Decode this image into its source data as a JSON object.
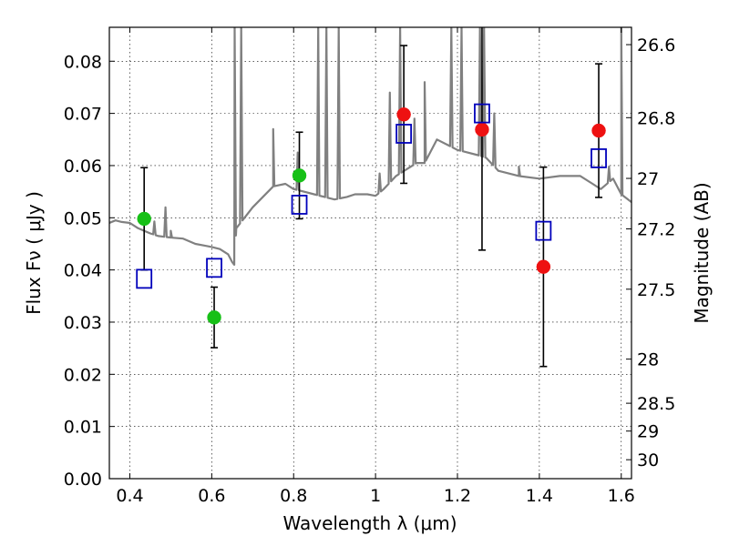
{
  "chart_data": {
    "type": "scatter",
    "xlabel": "Wavelength  λ (μm)",
    "ylabel": "Flux  Fν  ( μJy )",
    "y2label": "Magnitude (AB)",
    "xlim": [
      0.35,
      1.625
    ],
    "ylim": [
      0.0,
      0.0865
    ],
    "grid": true,
    "x_ticks": [
      0.4,
      0.6,
      0.8,
      1.0,
      1.2,
      1.4,
      1.6
    ],
    "x_tick_labels": [
      "0.4",
      "0.6",
      "0.8",
      "1",
      "1.2",
      "1.4",
      "1.6"
    ],
    "y_ticks": [
      0.0,
      0.01,
      0.02,
      0.03,
      0.04,
      0.05,
      0.06,
      0.07,
      0.08
    ],
    "y_tick_labels": [
      "0.00",
      "0.01",
      "0.02",
      "0.03",
      "0.04",
      "0.05",
      "0.06",
      "0.07",
      "0.08"
    ],
    "mag_ticks": [
      26.6,
      26.8,
      27,
      27.2,
      27.5,
      28,
      28.5,
      29,
      30
    ],
    "mag_tick_labels": [
      "26.6",
      "26.8",
      "27",
      "27.2",
      "27.5",
      "28",
      "28.5",
      "29",
      "30"
    ],
    "observed_optical": {
      "color": "#17c017",
      "points": [
        {
          "x": 0.435,
          "y": 0.0498,
          "err": 0.0098
        },
        {
          "x": 0.606,
          "y": 0.0309,
          "err": 0.0058
        },
        {
          "x": 0.814,
          "y": 0.0581,
          "err": 0.0083
        }
      ]
    },
    "observed_nir": {
      "color": "#ee1111",
      "points": [
        {
          "x": 1.069,
          "y": 0.0698,
          "err": 0.0132
        },
        {
          "x": 1.26,
          "y": 0.0669,
          "err": 0.0231
        },
        {
          "x": 1.41,
          "y": 0.0406,
          "err": 0.0191
        },
        {
          "x": 1.545,
          "y": 0.0667,
          "err": 0.0128
        }
      ]
    },
    "model_photometry": {
      "color": "#0000bb",
      "points": [
        {
          "x": 0.435,
          "y": 0.0383
        },
        {
          "x": 0.606,
          "y": 0.0404
        },
        {
          "x": 0.814,
          "y": 0.0525
        },
        {
          "x": 1.069,
          "y": 0.0661
        },
        {
          "x": 1.26,
          "y": 0.07
        },
        {
          "x": 1.41,
          "y": 0.0475
        },
        {
          "x": 1.545,
          "y": 0.0614
        }
      ]
    },
    "model_spectrum": {
      "color": "#808080",
      "x": [
        0.35,
        0.365,
        0.38,
        0.4,
        0.42,
        0.45,
        0.47,
        0.5,
        0.53,
        0.56,
        0.58,
        0.6,
        0.62,
        0.64,
        0.65,
        0.655,
        0.66,
        0.7,
        0.75,
        0.78,
        0.8,
        0.85,
        0.9,
        0.93,
        0.95,
        0.98,
        1.0,
        1.02,
        1.05,
        1.08,
        1.1,
        1.12,
        1.15,
        1.2,
        1.25,
        1.27,
        1.3,
        1.35,
        1.4,
        1.45,
        1.5,
        1.53,
        1.55,
        1.58,
        1.6,
        1.625
      ],
      "y": [
        0.049,
        0.0495,
        0.0492,
        0.049,
        0.048,
        0.047,
        0.0465,
        0.0462,
        0.046,
        0.045,
        0.0447,
        0.0444,
        0.044,
        0.043,
        0.0415,
        0.041,
        0.048,
        0.052,
        0.056,
        0.0565,
        0.0555,
        0.0545,
        0.0535,
        0.054,
        0.0545,
        0.0545,
        0.0542,
        0.0555,
        0.058,
        0.0595,
        0.0605,
        0.0605,
        0.065,
        0.063,
        0.062,
        0.0615,
        0.059,
        0.058,
        0.0575,
        0.058,
        0.058,
        0.0565,
        0.0555,
        0.0575,
        0.0545,
        0.053
      ],
      "spikes": [
        {
          "x": 0.46,
          "y": 0.0493
        },
        {
          "x": 0.487,
          "y": 0.052
        },
        {
          "x": 0.5,
          "y": 0.0475
        },
        {
          "x": 0.656,
          "y": 0.0865
        },
        {
          "x": 0.672,
          "y": 0.0865
        },
        {
          "x": 0.75,
          "y": 0.067
        },
        {
          "x": 0.81,
          "y": 0.0625
        },
        {
          "x": 0.86,
          "y": 0.0865
        },
        {
          "x": 0.88,
          "y": 0.0865
        },
        {
          "x": 0.91,
          "y": 0.0865
        },
        {
          "x": 1.01,
          "y": 0.0585
        },
        {
          "x": 1.035,
          "y": 0.074
        },
        {
          "x": 1.06,
          "y": 0.0865
        },
        {
          "x": 1.095,
          "y": 0.069
        },
        {
          "x": 1.12,
          "y": 0.076
        },
        {
          "x": 1.185,
          "y": 0.0865
        },
        {
          "x": 1.21,
          "y": 0.0865
        },
        {
          "x": 1.255,
          "y": 0.0865
        },
        {
          "x": 1.265,
          "y": 0.0865
        },
        {
          "x": 1.29,
          "y": 0.07
        },
        {
          "x": 1.35,
          "y": 0.0598
        },
        {
          "x": 1.57,
          "y": 0.0598
        },
        {
          "x": 1.6,
          "y": 0.0865
        }
      ]
    }
  }
}
